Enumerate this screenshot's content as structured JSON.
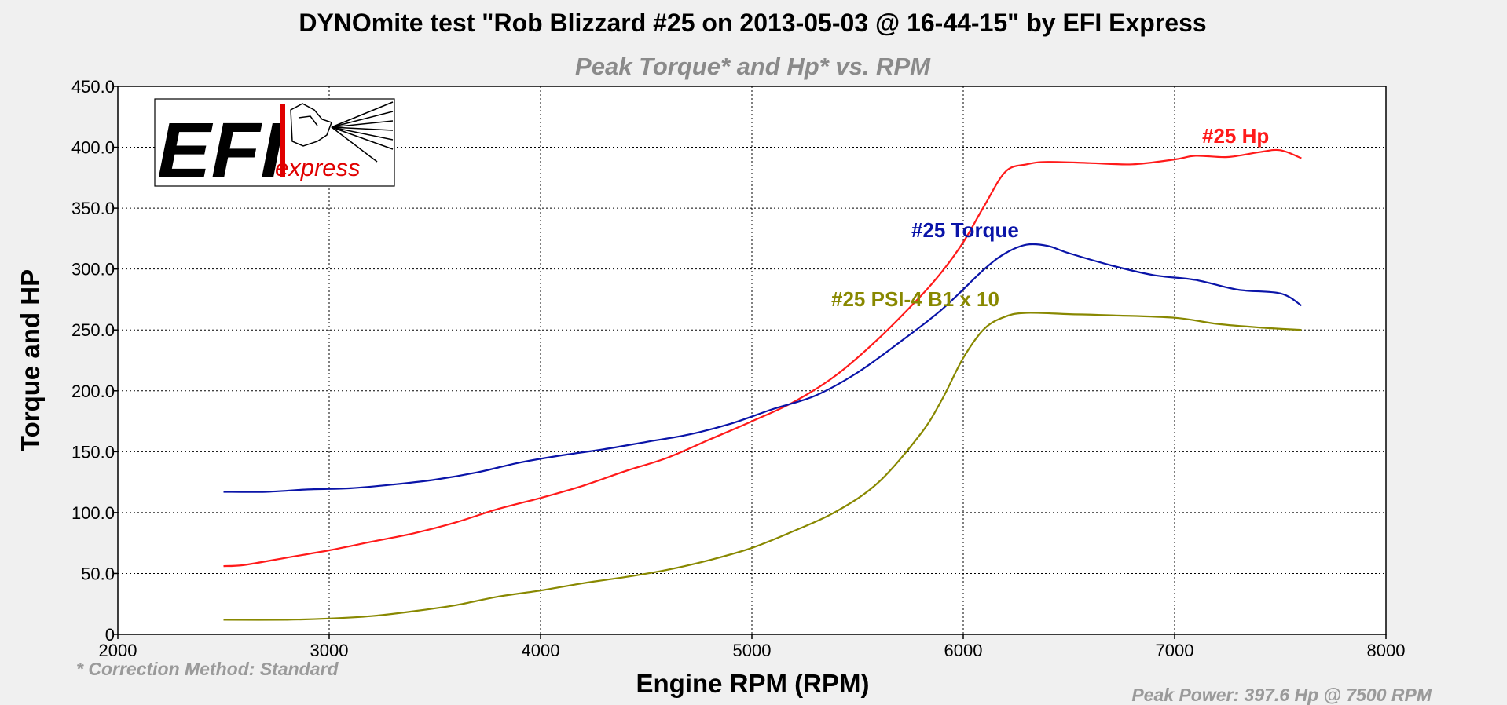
{
  "colors": {
    "hp": "#ff1a1a",
    "torque": "#0a14a8",
    "psi": "#888800",
    "subtitle": "#8a8a8a",
    "footnote": "#9a9a9a"
  },
  "logo": {
    "big": "EFI",
    "small": "express"
  },
  "chart_data": {
    "type": "line",
    "title": "DYNOmite test \"Rob Blizzard #25 on 2013-05-03 @ 16-44-15\" by EFI Express",
    "subtitle": "Peak Torque* and Hp* vs. RPM",
    "xlabel": "Engine RPM (RPM)",
    "ylabel": "Torque and HP",
    "xlim": [
      2000,
      8000
    ],
    "ylim": [
      0,
      450
    ],
    "x_ticks": [
      "2000",
      "3000",
      "4000",
      "5000",
      "6000",
      "7000",
      "8000"
    ],
    "y_ticks": [
      "0",
      "50.0",
      "100.0",
      "150.0",
      "200.0",
      "250.0",
      "300.0",
      "350.0",
      "400.0",
      "450.0"
    ],
    "grid": true,
    "footnote_left": "* Correction Method: Standard",
    "footnote_right": "Peak Power: 397.6 Hp @ 7500 RPM",
    "series": [
      {
        "name": "#25 Hp",
        "key": "hp",
        "points": [
          [
            2500,
            56
          ],
          [
            2600,
            57
          ],
          [
            2800,
            63
          ],
          [
            3000,
            69
          ],
          [
            3200,
            76
          ],
          [
            3400,
            83
          ],
          [
            3600,
            92
          ],
          [
            3800,
            103
          ],
          [
            4000,
            112
          ],
          [
            4200,
            122
          ],
          [
            4400,
            134
          ],
          [
            4600,
            145
          ],
          [
            4800,
            160
          ],
          [
            5000,
            175
          ],
          [
            5200,
            191
          ],
          [
            5400,
            213
          ],
          [
            5600,
            243
          ],
          [
            5800,
            278
          ],
          [
            5900,
            298
          ],
          [
            6000,
            322
          ],
          [
            6100,
            352
          ],
          [
            6200,
            380
          ],
          [
            6300,
            386
          ],
          [
            6400,
            388
          ],
          [
            6600,
            387
          ],
          [
            6800,
            386
          ],
          [
            7000,
            390
          ],
          [
            7100,
            393
          ],
          [
            7250,
            392
          ],
          [
            7400,
            396
          ],
          [
            7500,
            397.6
          ],
          [
            7600,
            391
          ]
        ]
      },
      {
        "name": "#25 Torque",
        "key": "torque",
        "points": [
          [
            2500,
            117
          ],
          [
            2700,
            117
          ],
          [
            2900,
            119
          ],
          [
            3100,
            120
          ],
          [
            3300,
            123
          ],
          [
            3500,
            127
          ],
          [
            3700,
            133
          ],
          [
            3900,
            141
          ],
          [
            4100,
            147
          ],
          [
            4300,
            152
          ],
          [
            4500,
            158
          ],
          [
            4700,
            164
          ],
          [
            4900,
            173
          ],
          [
            5100,
            185
          ],
          [
            5300,
            196
          ],
          [
            5500,
            215
          ],
          [
            5700,
            240
          ],
          [
            5900,
            267
          ],
          [
            6100,
            300
          ],
          [
            6200,
            313
          ],
          [
            6300,
            320
          ],
          [
            6400,
            319
          ],
          [
            6500,
            313
          ],
          [
            6700,
            303
          ],
          [
            6900,
            295
          ],
          [
            7100,
            291
          ],
          [
            7300,
            283
          ],
          [
            7500,
            280
          ],
          [
            7600,
            270
          ]
        ]
      },
      {
        "name": "#25 PSI-4 B1 x 10",
        "key": "psi",
        "points": [
          [
            2500,
            12
          ],
          [
            2800,
            12
          ],
          [
            3000,
            13
          ],
          [
            3200,
            15
          ],
          [
            3400,
            19
          ],
          [
            3600,
            24
          ],
          [
            3800,
            31
          ],
          [
            4000,
            36
          ],
          [
            4200,
            42
          ],
          [
            4400,
            47
          ],
          [
            4600,
            53
          ],
          [
            4800,
            61
          ],
          [
            5000,
            71
          ],
          [
            5200,
            85
          ],
          [
            5400,
            101
          ],
          [
            5600,
            125
          ],
          [
            5800,
            165
          ],
          [
            5900,
            193
          ],
          [
            6000,
            227
          ],
          [
            6100,
            251
          ],
          [
            6200,
            261
          ],
          [
            6300,
            264
          ],
          [
            6500,
            263
          ],
          [
            6700,
            262
          ],
          [
            7000,
            260
          ],
          [
            7200,
            255
          ],
          [
            7400,
            252
          ],
          [
            7600,
            250
          ]
        ]
      }
    ]
  }
}
